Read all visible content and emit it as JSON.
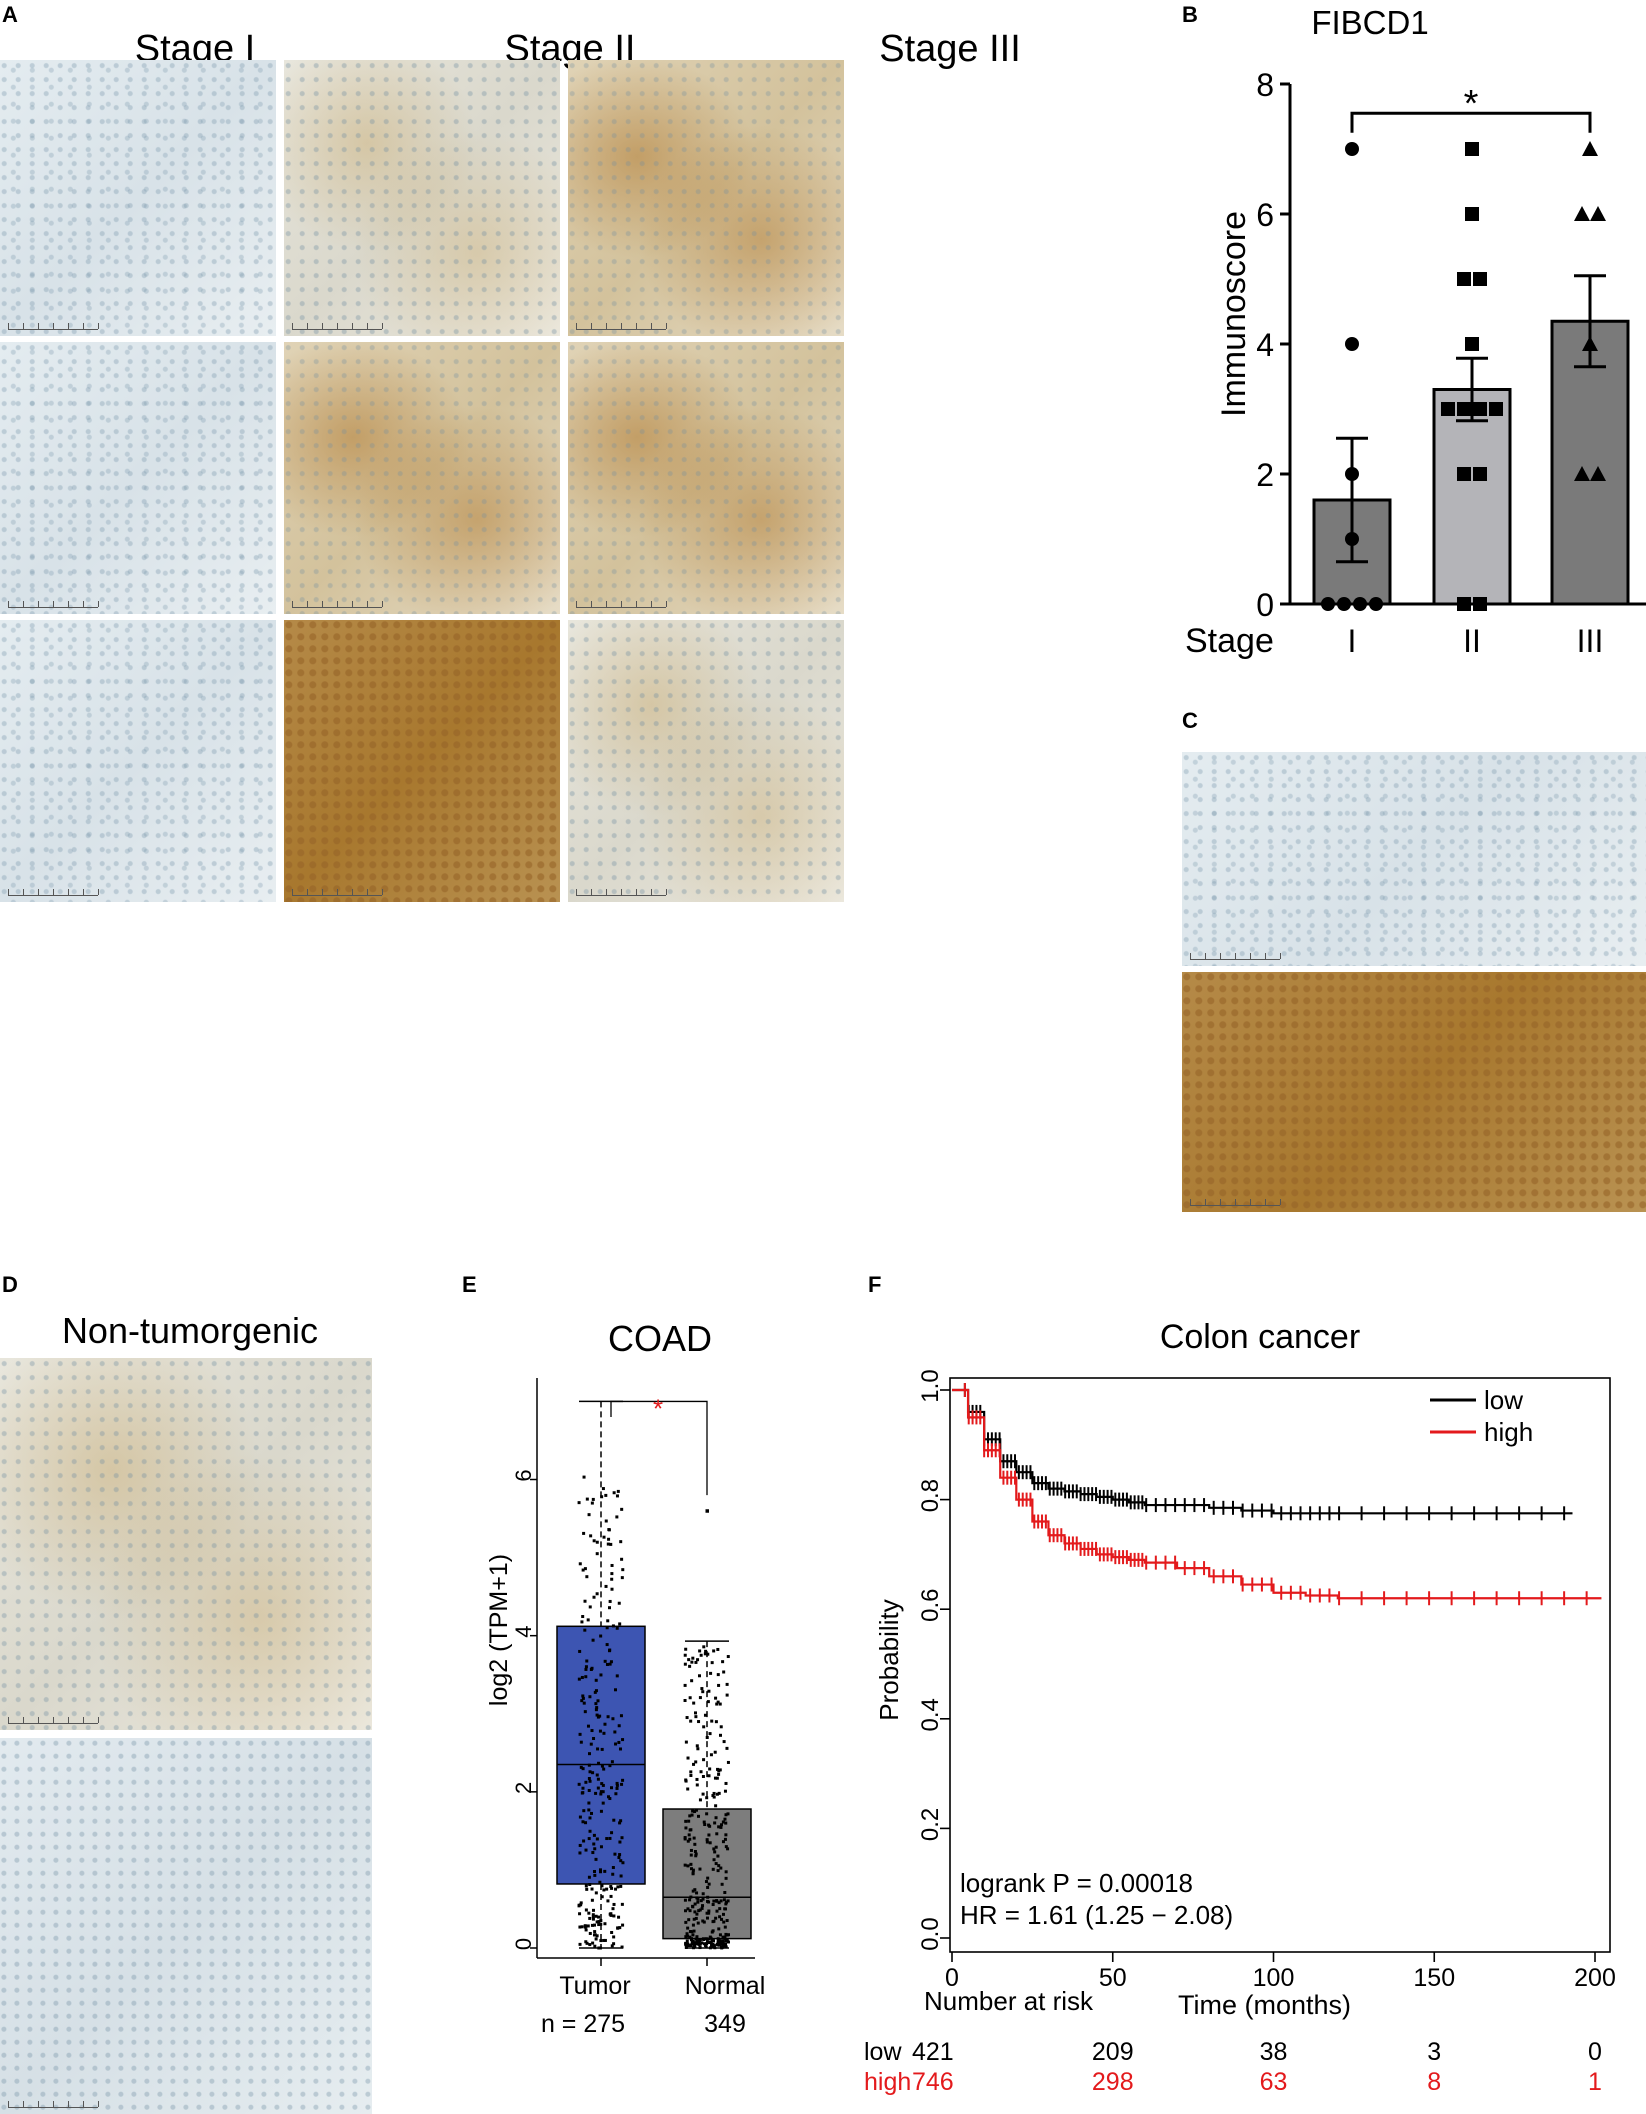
{
  "colors": {
    "stain_blue": "#dfe8ec",
    "stain_brown": "#c9a467",
    "stain_dark": "#a8762c",
    "bar_gray": "#7a7a7a",
    "bar_light": "#b4b4b8",
    "tumor_blue": "#3d55b2",
    "normal_gray": "#7d7d7d",
    "km_red": "#e31a1c",
    "km_black": "#000000"
  },
  "panel_a": {
    "label": "A",
    "columns": [
      "Stage I",
      "Stage II",
      "Stage III"
    ]
  },
  "panel_b": {
    "label": "B"
  },
  "panel_c": {
    "label": "C"
  },
  "panel_d": {
    "label": "D",
    "title": "Non-tumorgenic"
  },
  "panel_e": {
    "label": "E"
  },
  "panel_f": {
    "label": "F"
  },
  "chart_data": [
    {
      "id": "B",
      "type": "bar",
      "title": "FIBCD1",
      "ylabel": "Immunoscore",
      "xlabel": "Stage",
      "categories": [
        "I",
        "II",
        "III"
      ],
      "values": [
        1.6,
        3.3,
        4.35
      ],
      "error": [
        0.95,
        0.48,
        0.7
      ],
      "points": [
        [
          7,
          4,
          2,
          1,
          0,
          0,
          0,
          0
        ],
        [
          7,
          6,
          5,
          5,
          4,
          3,
          3,
          3,
          3,
          2,
          2,
          0,
          0
        ],
        [
          7,
          6,
          6,
          4,
          2,
          2
        ]
      ],
      "markers": [
        "circle",
        "square",
        "triangle"
      ],
      "ylim": [
        0,
        8
      ],
      "yticks": [
        0,
        2,
        4,
        6,
        8
      ],
      "significance": "*"
    },
    {
      "id": "E",
      "type": "box",
      "title": "COAD",
      "ylabel": "log2 (TPM+1)",
      "categories": [
        "Tumor",
        "Normal"
      ],
      "n_labels": [
        "n = 275",
        "349"
      ],
      "box": [
        {
          "min": 0.0,
          "q1": 0.82,
          "median": 2.35,
          "q3": 4.12,
          "max": 7.0
        },
        {
          "min": 0.0,
          "q1": 0.12,
          "median": 0.65,
          "q3": 1.78,
          "max": 3.93
        }
      ],
      "outliers": [
        [],
        [
          5.6
        ]
      ],
      "ylim": [
        0,
        7.3
      ],
      "yticks": [
        0,
        2,
        4,
        6
      ],
      "significance": "*"
    },
    {
      "id": "F",
      "type": "line",
      "title": "Colon cancer",
      "xlabel": "Time (months)",
      "ylabel": "Probability",
      "xlim": [
        0,
        200
      ],
      "ylim": [
        0,
        1.0
      ],
      "xticks": [
        0,
        50,
        100,
        150,
        200
      ],
      "yticks": [
        "0.0",
        "0.2",
        "0.4",
        "0.6",
        "0.8",
        "1.0"
      ],
      "series": [
        {
          "name": "low",
          "color": "#000000",
          "x": [
            0,
            5,
            10,
            15,
            20,
            25,
            30,
            35,
            40,
            45,
            50,
            55,
            60,
            70,
            80,
            90,
            100,
            110,
            120,
            140,
            160,
            180,
            193
          ],
          "y": [
            1.0,
            0.96,
            0.91,
            0.87,
            0.85,
            0.83,
            0.82,
            0.815,
            0.81,
            0.805,
            0.8,
            0.795,
            0.79,
            0.79,
            0.785,
            0.78,
            0.775,
            0.775,
            0.775,
            0.775,
            0.775,
            0.775,
            0.775
          ]
        },
        {
          "name": "high",
          "color": "#e31a1c",
          "x": [
            0,
            5,
            10,
            15,
            20,
            25,
            30,
            35,
            40,
            45,
            50,
            55,
            60,
            70,
            80,
            90,
            100,
            110,
            120,
            140,
            160,
            180,
            202
          ],
          "y": [
            1.0,
            0.95,
            0.89,
            0.84,
            0.8,
            0.76,
            0.735,
            0.72,
            0.71,
            0.7,
            0.695,
            0.69,
            0.685,
            0.675,
            0.66,
            0.645,
            0.63,
            0.625,
            0.62,
            0.62,
            0.62,
            0.62,
            0.62
          ]
        }
      ],
      "annotations": [
        "logrank P = 0.00018",
        "HR = 1.61 (1.25 − 2.08)"
      ],
      "legend": "top-right",
      "risk_table": {
        "title": "Number at risk",
        "rows": [
          {
            "label": "low",
            "values": [
              "421",
              "209",
              "38",
              "3",
              "0"
            ]
          },
          {
            "label": "high",
            "values": [
              "746",
              "298",
              "63",
              "8",
              "1"
            ]
          }
        ]
      }
    }
  ]
}
